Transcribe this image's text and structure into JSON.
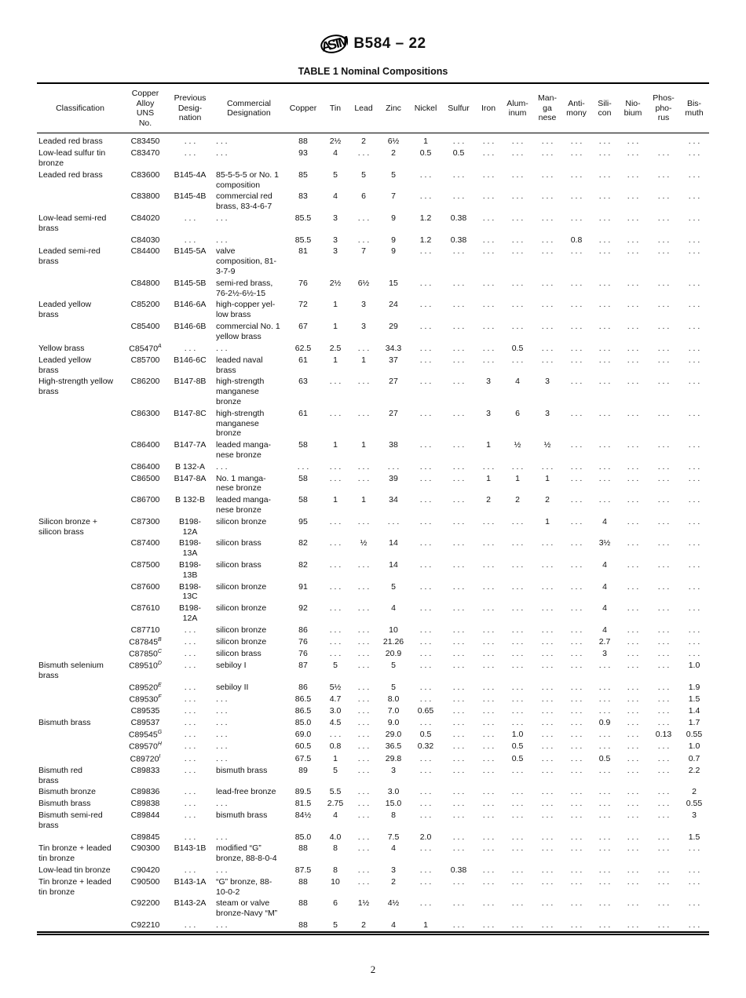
{
  "header": {
    "designation": "B584 – 22",
    "table_title": "TABLE 1 Nominal Compositions"
  },
  "footer": {
    "page_number": "2"
  },
  "table": {
    "columns": [
      "Classification",
      "Copper\nAlloy\nUNS\nNo.",
      "Previous\nDesig-\nnation",
      "Commercial\nDesignation",
      "Copper",
      "Tin",
      "Lead",
      "Zinc",
      "Nickel",
      "Sulfur",
      "Iron",
      "Alum-\ninum",
      "Man-\nga\nnese",
      "Anti-\nmony",
      "Sili-\ncon",
      "Nio-\nbium",
      "Phos-\npho-\nrus",
      "Bis-\nmuth"
    ],
    "rows": [
      {
        "c": "Leaded red brass",
        "uns": "C83450",
        "sup": "",
        "prev": ". . .",
        "comm": ". . .",
        "v": [
          "88",
          "2½",
          "2",
          "6½",
          "1",
          ". . .",
          ". . .",
          ". . .",
          ". . .",
          ". . .",
          ". . .",
          ". . .",
          "",
          ". . ."
        ]
      },
      {
        "c": "Low-lead sulfur tin\nbronze",
        "uns": "C83470",
        "sup": "",
        "prev": ". . .",
        "comm": ". . .",
        "v": [
          "93",
          "4",
          ". . .",
          "2",
          "0.5",
          "0.5",
          ". . .",
          ". . .",
          ". . .",
          ". . .",
          ". . .",
          ". . .",
          ". . .",
          ". . ."
        ]
      },
      {
        "c": "Leaded red brass",
        "uns": "C83600",
        "sup": "",
        "prev": "B145-4A",
        "comm": "85-5-5-5 or No. 1\ncomposition",
        "v": [
          "85",
          "5",
          "5",
          "5",
          ". . .",
          ". . .",
          ". . .",
          ". . .",
          ". . .",
          ". . .",
          ". . .",
          ". . .",
          ". . .",
          ". . ."
        ]
      },
      {
        "c": "",
        "uns": "C83800",
        "sup": "",
        "prev": "B145-4B",
        "comm": "commercial red\nbrass, 83-4-6-7",
        "v": [
          "83",
          "4",
          "6",
          "7",
          ". . .",
          ". . .",
          ". . .",
          ". . .",
          ". . .",
          ". . .",
          ". . .",
          ". . .",
          ". . .",
          ". . ."
        ]
      },
      {
        "c": "Low-lead semi-red\nbrass",
        "uns": "C84020",
        "sup": "",
        "prev": ". . .",
        "comm": ". . .",
        "v": [
          "85.5",
          "3",
          ". . .",
          "9",
          "1.2",
          "0.38",
          ". . .",
          ". . .",
          ". . .",
          ". . .",
          ". . .",
          ". . .",
          ". . .",
          ". . ."
        ]
      },
      {
        "c": "",
        "uns": "C84030",
        "sup": "",
        "prev": ". . .",
        "comm": ". . .",
        "v": [
          "85.5",
          "3",
          ". . .",
          "9",
          "1.2",
          "0.38",
          ". . .",
          ". . .",
          ". . .",
          "0.8",
          ". . .",
          ". . .",
          ". . .",
          ". . ."
        ]
      },
      {
        "c": "Leaded semi-red\nbrass",
        "uns": "C84400",
        "sup": "",
        "prev": "B145-5A",
        "comm": "valve\ncomposition, 81-\n3-7-9",
        "v": [
          "81",
          "3",
          "7",
          "9",
          ". . .",
          ". . .",
          ". . .",
          ". . .",
          ". . .",
          ". . .",
          ". . .",
          ". . .",
          ". . .",
          ". . ."
        ]
      },
      {
        "c": "",
        "uns": "C84800",
        "sup": "",
        "prev": "B145-5B",
        "comm": "semi-red brass,\n76-2½-6½-15",
        "v": [
          "76",
          "2½",
          "6½",
          "15",
          ". . .",
          ". . .",
          ". . .",
          ". . .",
          ". . .",
          ". . .",
          ". . .",
          ". . .",
          ". . .",
          ". . ."
        ]
      },
      {
        "c": "Leaded yellow\nbrass",
        "uns": "C85200",
        "sup": "",
        "prev": "B146-6A",
        "comm": "high-copper yel-\nlow brass",
        "v": [
          "72",
          "1",
          "3",
          "24",
          ". . .",
          ". . .",
          ". . .",
          ". . .",
          ". . .",
          ". . .",
          ". . .",
          ". . .",
          ". . .",
          ". . ."
        ]
      },
      {
        "c": "",
        "uns": "C85400",
        "sup": "",
        "prev": "B146-6B",
        "comm": "commercial No. 1\nyellow brass",
        "v": [
          "67",
          "1",
          "3",
          "29",
          ". . .",
          ". . .",
          ". . .",
          ". . .",
          ". . .",
          ". . .",
          ". . .",
          ". . .",
          ". . .",
          ". . ."
        ]
      },
      {
        "c": "Yellow brass",
        "uns": "C85470",
        "sup": "A",
        "prev": ". . .",
        "comm": ". . .",
        "v": [
          "62.5",
          "2.5",
          ". . .",
          "34.3",
          ". . .",
          ". . .",
          ". . .",
          "0.5",
          ". . .",
          ". . .",
          ". . .",
          ". . .",
          ". . .",
          ". . ."
        ]
      },
      {
        "c": "Leaded yellow\nbrass",
        "uns": "C85700",
        "sup": "",
        "prev": "B146-6C",
        "comm": "leaded naval\nbrass",
        "v": [
          "61",
          "1",
          "1",
          "37",
          ". . .",
          ". . .",
          ". . .",
          ". . .",
          ". . .",
          ". . .",
          ". . .",
          ". . .",
          ". . .",
          ". . ."
        ]
      },
      {
        "c": "High-strength yellow\nbrass",
        "uns": "C86200",
        "sup": "",
        "prev": "B147-8B",
        "comm": "high-strength\nmanganese\nbronze",
        "v": [
          "63",
          ". . .",
          ". . .",
          "27",
          ". . .",
          ". . .",
          "3",
          "4",
          "3",
          ". . .",
          ". . .",
          ". . .",
          ". . .",
          ". . ."
        ]
      },
      {
        "c": "",
        "uns": "C86300",
        "sup": "",
        "prev": "B147-8C",
        "comm": "high-strength\nmanganese\nbronze",
        "v": [
          "61",
          ". . .",
          ". . .",
          "27",
          ". . .",
          ". . .",
          "3",
          "6",
          "3",
          ". . .",
          ". . .",
          ". . .",
          ". . .",
          ". . ."
        ]
      },
      {
        "c": "",
        "uns": "C86400",
        "sup": "",
        "prev": "B147-7A",
        "comm": "leaded manga-\nnese bronze",
        "v": [
          "58",
          "1",
          "1",
          "38",
          ". . .",
          ". . .",
          "1",
          "½",
          "½",
          ". . .",
          ". . .",
          ". . .",
          ". . .",
          ". . ."
        ]
      },
      {
        "c": "",
        "uns": "C86400",
        "sup": "",
        "prev": "B 132-A",
        "comm": ". . .",
        "v": [
          ". . .",
          ". . .",
          ". . .",
          ". . .",
          ". . .",
          ". . .",
          ". . .",
          ". . .",
          ". . .",
          ". . .",
          ". . .",
          ". . .",
          ". . .",
          ". . ."
        ]
      },
      {
        "c": "",
        "uns": "C86500",
        "sup": "",
        "prev": "B147-8A",
        "comm": "No. 1 manga-\nnese bronze",
        "v": [
          "58",
          ". . .",
          ". . .",
          "39",
          ". . .",
          ". . .",
          "1",
          "1",
          "1",
          ". . .",
          ". . .",
          ". . .",
          ". . .",
          ". . ."
        ]
      },
      {
        "c": "",
        "uns": "C86700",
        "sup": "",
        "prev": "B 132-B",
        "comm": "leaded manga-\nnese bronze",
        "v": [
          "58",
          "1",
          "1",
          "34",
          ". . .",
          ". . .",
          "2",
          "2",
          "2",
          ". . .",
          ". . .",
          ". . .",
          ". . .",
          ". . ."
        ]
      },
      {
        "c": "Silicon bronze +\nsilicon brass",
        "uns": "C87300",
        "sup": "",
        "prev": "B198-\n12A",
        "comm": "silicon bronze",
        "v": [
          "95",
          ". . .",
          ". . .",
          ". . .",
          ". . .",
          ". . .",
          ". . .",
          ". . .",
          "1",
          ". . .",
          "4",
          ". . .",
          ". . .",
          ". . ."
        ]
      },
      {
        "c": "",
        "uns": "C87400",
        "sup": "",
        "prev": "B198-\n13A",
        "comm": "silicon brass",
        "v": [
          "82",
          ". . .",
          "½",
          "14",
          ". . .",
          ". . .",
          ". . .",
          ". . .",
          ". . .",
          ". . .",
          "3½",
          ". . .",
          ". . .",
          ". . ."
        ]
      },
      {
        "c": "",
        "uns": "C87500",
        "sup": "",
        "prev": "B198-\n13B",
        "comm": "silicon brass",
        "v": [
          "82",
          ". . .",
          ". . .",
          "14",
          ". . .",
          ". . .",
          ". . .",
          ". . .",
          ". . .",
          ". . .",
          "4",
          ". . .",
          ". . .",
          ". . ."
        ]
      },
      {
        "c": "",
        "uns": "C87600",
        "sup": "",
        "prev": "B198-\n13C",
        "comm": "silicon bronze",
        "v": [
          "91",
          ". . .",
          ". . .",
          "5",
          ". . .",
          ". . .",
          ". . .",
          ". . .",
          ". . .",
          ". . .",
          "4",
          ". . .",
          ". . .",
          ". . ."
        ]
      },
      {
        "c": "",
        "uns": "C87610",
        "sup": "",
        "prev": "B198-\n12A",
        "comm": "silicon bronze",
        "v": [
          "92",
          ". . .",
          ". . .",
          "4",
          ". . .",
          ". . .",
          ". . .",
          ". . .",
          ". . .",
          ". . .",
          "4",
          ". . .",
          ". . .",
          ". . ."
        ]
      },
      {
        "c": "",
        "uns": "C87710",
        "sup": "",
        "prev": ". . .",
        "comm": "silicon bronze",
        "v": [
          "86",
          ". . .",
          ". . .",
          "10",
          ". . .",
          ". . .",
          ". . .",
          ". . .",
          ". . .",
          ". . .",
          "4",
          ". . .",
          ". . .",
          ". . ."
        ]
      },
      {
        "c": "",
        "uns": "C87845",
        "sup": "B",
        "prev": ". . .",
        "comm": "silicon bronze",
        "v": [
          "76",
          ". . .",
          ". . .",
          "21.26",
          ". . .",
          ". . .",
          ". . .",
          ". . .",
          ". . .",
          ". . .",
          "2.7",
          ". . .",
          ". . .",
          ". . ."
        ]
      },
      {
        "c": "",
        "uns": "C87850",
        "sup": "C",
        "prev": ". . .",
        "comm": "silicon brass",
        "v": [
          "76",
          ". . .",
          ". . .",
          "20.9",
          ". . .",
          ". . .",
          ". . .",
          ". . .",
          ". . .",
          ". . .",
          "3",
          ". . .",
          ". . .",
          ". . ."
        ]
      },
      {
        "c": "Bismuth selenium\nbrass",
        "uns": "C89510",
        "sup": "D",
        "prev": ". . .",
        "comm": "sebiloy I",
        "v": [
          "87",
          "5",
          ". . .",
          "5",
          ". . .",
          ". . .",
          ". . .",
          ". . .",
          ". . .",
          ". . .",
          ". . .",
          ". . .",
          ". . .",
          "1.0"
        ]
      },
      {
        "c": "",
        "uns": "C89520",
        "sup": "E",
        "prev": ". . .",
        "comm": "sebiloy II",
        "v": [
          "86",
          "5½",
          ". . .",
          "5",
          ". . .",
          ". . .",
          ". . .",
          ". . .",
          ". . .",
          ". . .",
          ". . .",
          ". . .",
          ". . .",
          "1.9"
        ]
      },
      {
        "c": "",
        "uns": "C89530",
        "sup": "F",
        "prev": ". . .",
        "comm": ". . .",
        "v": [
          "86.5",
          "4.7",
          ". . .",
          "8.0",
          ". . .",
          ". . .",
          ". . .",
          ". . .",
          ". . .",
          ". . .",
          ". . .",
          ". . .",
          ". . .",
          "1.5"
        ]
      },
      {
        "c": "",
        "uns": "C89535",
        "sup": "",
        "prev": ". . .",
        "comm": ". . .",
        "v": [
          "86.5",
          "3.0",
          ". . .",
          "7.0",
          "0.65",
          ". . .",
          ". . .",
          ". . .",
          ". . .",
          ". . .",
          ". . .",
          ". . .",
          ". . .",
          "1.4"
        ]
      },
      {
        "c": "Bismuth brass",
        "uns": "C89537",
        "sup": "",
        "prev": ". . .",
        "comm": ". . .",
        "v": [
          "85.0",
          "4.5",
          ". . .",
          "9.0",
          ". . .",
          ". . .",
          ". . .",
          ". . .",
          ". . .",
          ". . .",
          "0.9",
          ". . .",
          ". . .",
          "1.7"
        ]
      },
      {
        "c": "",
        "uns": "C89545",
        "sup": "G",
        "prev": ". . .",
        "comm": ". . .",
        "v": [
          "69.0",
          ". . .",
          ". . .",
          "29.0",
          "0.5",
          ". . .",
          ". . .",
          "1.0",
          ". . .",
          ". . .",
          ". . .",
          ". . .",
          "0.13",
          "0.55"
        ]
      },
      {
        "c": "",
        "uns": "C89570",
        "sup": "H",
        "prev": ". . .",
        "comm": ". . .",
        "v": [
          "60.5",
          "0.8",
          ". . .",
          "36.5",
          "0.32",
          ". . .",
          ". . .",
          "0.5",
          ". . .",
          ". . .",
          ". . .",
          ". . .",
          ". . .",
          "1.0"
        ]
      },
      {
        "c": "",
        "uns": "C89720",
        "sup": "I",
        "prev": ". . .",
        "comm": ". . .",
        "v": [
          "67.5",
          "1",
          ". . .",
          "29.8",
          ". . .",
          ". . .",
          ". . .",
          "0.5",
          ". . .",
          ". . .",
          "0.5",
          ". . .",
          ". . .",
          "0.7"
        ]
      },
      {
        "c": "Bismuth red\nbrass",
        "uns": "C89833",
        "sup": "",
        "prev": ". . .",
        "comm": "bismuth brass",
        "v": [
          "89",
          "5",
          ". . .",
          "3",
          ". . .",
          ". . .",
          ". . .",
          ". . .",
          ". . .",
          ". . .",
          ". . .",
          ". . .",
          ". . .",
          "2.2"
        ]
      },
      {
        "c": "Bismuth bronze",
        "uns": "C89836",
        "sup": "",
        "prev": ". . .",
        "comm": "lead-free bronze",
        "v": [
          "89.5",
          "5.5",
          ". . .",
          "3.0",
          ". . .",
          ". . .",
          ". . .",
          ". . .",
          ". . .",
          ". . .",
          ". . .",
          ". . .",
          ". . .",
          "2"
        ]
      },
      {
        "c": "Bismuth brass",
        "uns": "C89838",
        "sup": "",
        "prev": ". . .",
        "comm": ". . .",
        "v": [
          "81.5",
          "2.75",
          ". . .",
          "15.0",
          ". . .",
          ". . .",
          ". . .",
          ". . .",
          ". . .",
          ". . .",
          ". . .",
          ". . .",
          ". . .",
          "0.55"
        ]
      },
      {
        "c": "Bismuth semi-red\nbrass",
        "uns": "C89844",
        "sup": "",
        "prev": ". . .",
        "comm": "bismuth brass",
        "v": [
          "84½",
          "4",
          ". . .",
          "8",
          ". . .",
          ". . .",
          ". . .",
          ". . .",
          ". . .",
          ". . .",
          ". . .",
          ". . .",
          ". . .",
          "3"
        ]
      },
      {
        "c": "",
        "uns": "C89845",
        "sup": "",
        "prev": ". . .",
        "comm": ". . .",
        "v": [
          "85.0",
          "4.0",
          ". . .",
          "7.5",
          "2.0",
          ". . .",
          ". . .",
          ". . .",
          ". . .",
          ". . .",
          ". . .",
          ". . .",
          ". . .",
          "1.5"
        ]
      },
      {
        "c": "Tin bronze + leaded\ntin bronze",
        "uns": "C90300",
        "sup": "",
        "prev": "B143-1B",
        "comm": "modified “G”\nbronze, 88-8-0-4",
        "v": [
          "88",
          "8",
          ". . .",
          "4",
          ". . .",
          ". . .",
          ". . .",
          ". . .",
          ". . .",
          ". . .",
          ". . .",
          ". . .",
          ". . .",
          ". . ."
        ]
      },
      {
        "c": "Low-lead tin bronze",
        "uns": "C90420",
        "sup": "",
        "prev": ". . .",
        "comm": ". . .",
        "v": [
          "87.5",
          "8",
          ". . .",
          "3",
          ". . .",
          "0.38",
          ". . .",
          ". . .",
          ". . .",
          ". . .",
          ". . .",
          ". . .",
          ". . .",
          ". . ."
        ]
      },
      {
        "c": "Tin bronze + leaded\ntin bronze",
        "uns": "C90500",
        "sup": "",
        "prev": "B143-1A",
        "comm": "“G” bronze, 88-\n10-0-2",
        "v": [
          "88",
          "10",
          ". . .",
          "2",
          ". . .",
          ". . .",
          ". . .",
          ". . .",
          ". . .",
          ". . .",
          ". . .",
          ". . .",
          ". . .",
          ". . ."
        ]
      },
      {
        "c": "",
        "uns": "C92200",
        "sup": "",
        "prev": "B143-2A",
        "comm": "steam or valve\nbronze-Navy “M”",
        "v": [
          "88",
          "6",
          "1½",
          "4½",
          ". . .",
          ". . .",
          ". . .",
          ". . .",
          ". . .",
          ". . .",
          ". . .",
          ". . .",
          ". . .",
          ". . ."
        ]
      },
      {
        "c": "",
        "uns": "C92210",
        "sup": "",
        "prev": ". . .",
        "comm": ". . .",
        "v": [
          "88",
          "5",
          "2",
          "4",
          "1",
          ". . .",
          ". . .",
          ". . .",
          ". . .",
          ". . .",
          ". . .",
          ". . .",
          ". . .",
          ". . ."
        ]
      }
    ]
  }
}
